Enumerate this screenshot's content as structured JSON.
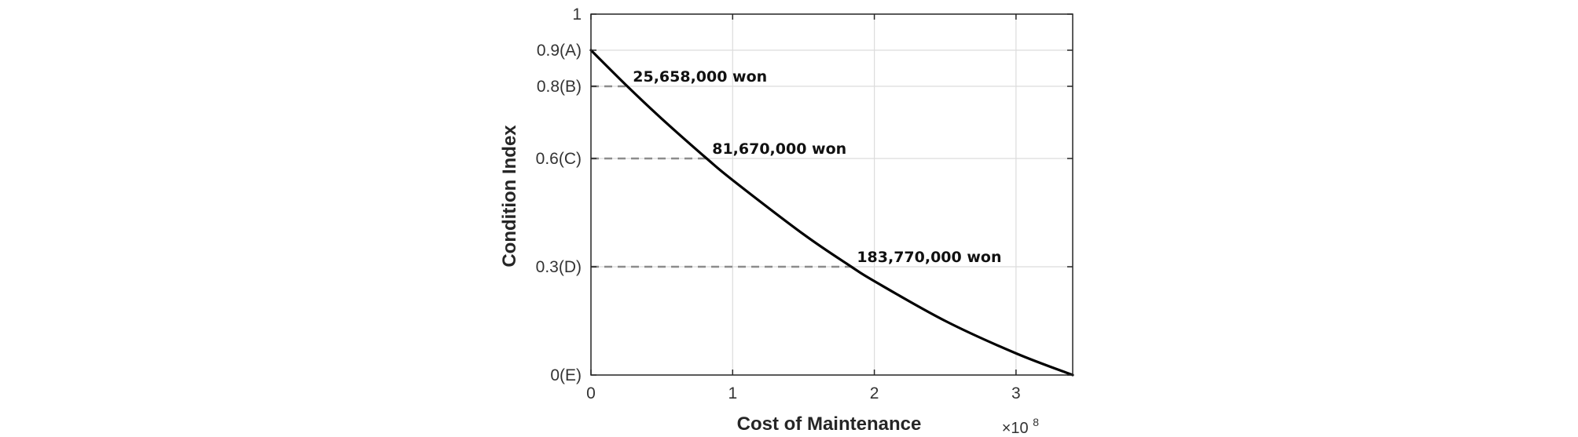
{
  "chart_data": {
    "type": "line",
    "xlabel": "Cost of Maintenance",
    "ylabel": "Condition Index",
    "x_multiplier": {
      "base": "×10",
      "exponent": "8"
    },
    "xlim": [
      0,
      340000000
    ],
    "ylim": [
      0,
      1
    ],
    "x_ticks": [
      {
        "value": 0,
        "label": "0"
      },
      {
        "value": 100000000,
        "label": "1"
      },
      {
        "value": 200000000,
        "label": "2"
      },
      {
        "value": 300000000,
        "label": "3"
      }
    ],
    "y_ticks": [
      {
        "value": 0,
        "label": "0(E)"
      },
      {
        "value": 0.3,
        "label": "0.3(D)"
      },
      {
        "value": 0.6,
        "label": "0.6(C)"
      },
      {
        "value": 0.8,
        "label": "0.8(B)"
      },
      {
        "value": 0.9,
        "label": "0.9(A)"
      },
      {
        "value": 1,
        "label": "1"
      }
    ],
    "grid": true,
    "series": [
      {
        "color": "#000000",
        "x": [
          0,
          25658000,
          50000000,
          81670000,
          100000000,
          150000000,
          183770000,
          200000000,
          250000000,
          300000000,
          340000000
        ],
        "y": [
          0.9,
          0.8,
          0.71,
          0.6,
          0.54,
          0.39,
          0.3,
          0.26,
          0.15,
          0.06,
          0.0
        ]
      }
    ],
    "annotations": [
      {
        "x": 25658000,
        "y": 0.8,
        "text": "25,658,000 won"
      },
      {
        "x": 81670000,
        "y": 0.6,
        "text": "81,670,000 won"
      },
      {
        "x": 183770000,
        "y": 0.3,
        "text": "183,770,000 won"
      }
    ]
  }
}
